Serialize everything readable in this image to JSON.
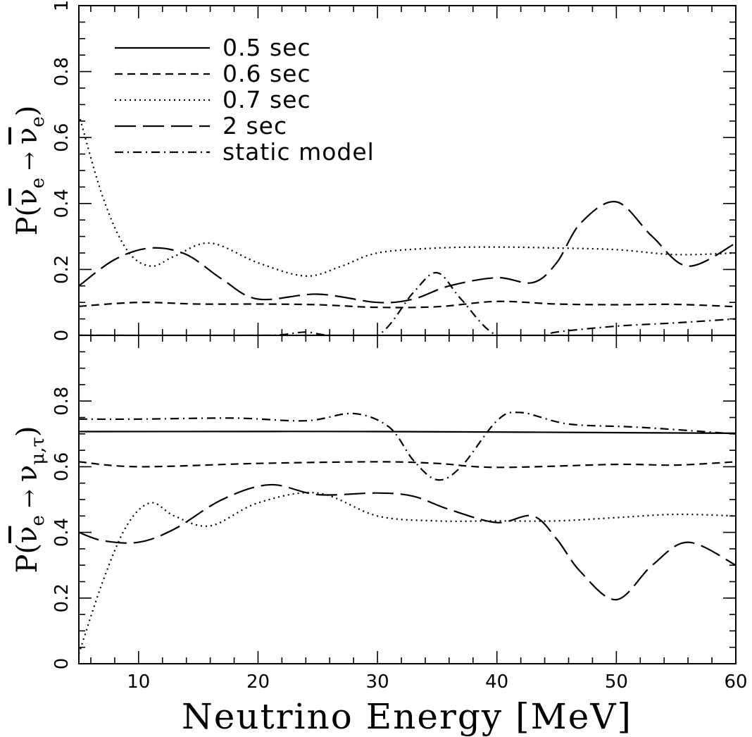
{
  "chart_data": {
    "type": "line",
    "xlabel": "Neutrino Energy [MeV]",
    "xlim": [
      5,
      60
    ],
    "x_ticks": [
      10,
      20,
      30,
      40,
      50,
      60
    ],
    "shared_x_axis": true,
    "colors": {
      "lines": "#000000",
      "background": "#ffffff"
    },
    "legend_location": "upper-left of top panel",
    "legend": [
      {
        "name": "0.5 sec",
        "dash": "solid"
      },
      {
        "name": "0.6 sec",
        "dash": "short-dash"
      },
      {
        "name": "0.7 sec",
        "dash": "dotted"
      },
      {
        "name": "2 sec",
        "dash": "long-dash"
      },
      {
        "name": "static model",
        "dash": "dash-dot"
      }
    ],
    "panels": [
      {
        "ylabel_parts": {
          "prefix": "P(",
          "from": "ν",
          "from_sub": "e",
          "arrow": "→",
          "to": "ν",
          "to_sub": "e",
          "suffix": ")"
        },
        "ylim": [
          0,
          1
        ],
        "y_ticks": [
          0,
          0.2,
          0.4,
          0.6,
          0.8,
          1
        ],
        "y_tick_labels": [
          "0",
          "0.2",
          "0.4",
          "0.6",
          "0.8",
          "1"
        ],
        "series": [
          {
            "name": "0.5 sec",
            "x": [
              5,
              60
            ],
            "y": [
              0.0,
              0.0
            ]
          },
          {
            "name": "0.6 sec",
            "x": [
              5,
              10,
              15,
              20,
              25,
              30,
              35,
              40,
              45,
              50,
              55,
              60
            ],
            "y": [
              0.088,
              0.1,
              0.095,
              0.095,
              0.093,
              0.085,
              0.087,
              0.103,
              0.095,
              0.093,
              0.094,
              0.087
            ]
          },
          {
            "name": "0.7 sec",
            "x": [
              5,
              7,
              9,
              11,
              13,
              16,
              20,
              24,
              27,
              30,
              35,
              40,
              45,
              50,
              55,
              60
            ],
            "y": [
              0.67,
              0.42,
              0.26,
              0.21,
              0.24,
              0.28,
              0.22,
              0.18,
              0.21,
              0.25,
              0.265,
              0.268,
              0.265,
              0.26,
              0.245,
              0.25
            ]
          },
          {
            "name": "2 sec",
            "x": [
              5,
              8,
              11,
              14,
              17,
              20,
              25,
              30,
              33,
              36,
              40,
              43,
              45,
              47,
              50,
              53,
              56,
              60
            ],
            "y": [
              0.15,
              0.23,
              0.265,
              0.245,
              0.17,
              0.11,
              0.125,
              0.1,
              0.11,
              0.15,
              0.175,
              0.16,
              0.22,
              0.34,
              0.405,
              0.3,
              0.21,
              0.28
            ]
          },
          {
            "name": "static model",
            "x": [
              5,
              20,
              22,
              24,
              26,
              30,
              33,
              35,
              37,
              40,
              44,
              45,
              50,
              55,
              60
            ],
            "y": [
              0.0,
              0.0,
              0.002,
              0.01,
              0.0,
              0.0,
              0.13,
              0.19,
              0.11,
              0.0,
              0.0,
              0.01,
              0.028,
              0.038,
              0.05
            ]
          }
        ]
      },
      {
        "ylabel_parts": {
          "prefix": "P(",
          "from": "ν",
          "from_sub": "e",
          "arrow": "→",
          "to": "ν",
          "to_sub": "μ,τ",
          "suffix": ")"
        },
        "ylim": [
          0,
          1
        ],
        "y_ticks": [
          0,
          0.2,
          0.4,
          0.6,
          0.8,
          1
        ],
        "y_tick_labels": [
          "0",
          "0.2",
          "0.4",
          "0.6",
          "0.8",
          ""
        ],
        "series": [
          {
            "name": "0.5 sec",
            "x": [
              5,
              30,
              60
            ],
            "y": [
              0.707,
              0.707,
              0.702
            ]
          },
          {
            "name": "0.6 sec",
            "x": [
              5,
              10,
              20,
              30,
              35,
              40,
              50,
              55,
              60
            ],
            "y": [
              0.615,
              0.6,
              0.61,
              0.615,
              0.61,
              0.598,
              0.607,
              0.605,
              0.615
            ]
          },
          {
            "name": "0.7 sec",
            "x": [
              5,
              7,
              9,
              11,
              13,
              16,
              20,
              25,
              30,
              35,
              40,
              45,
              50,
              55,
              60
            ],
            "y": [
              0.03,
              0.25,
              0.42,
              0.49,
              0.45,
              0.42,
              0.49,
              0.52,
              0.45,
              0.435,
              0.435,
              0.435,
              0.445,
              0.455,
              0.45
            ]
          },
          {
            "name": "2 sec",
            "x": [
              5,
              7,
              10,
              13,
              17,
              21,
              25,
              30,
              33,
              36,
              40,
              43,
              45,
              47,
              50,
              53,
              56,
              60
            ],
            "y": [
              0.4,
              0.375,
              0.37,
              0.41,
              0.5,
              0.545,
              0.515,
              0.52,
              0.51,
              0.47,
              0.43,
              0.45,
              0.38,
              0.28,
              0.195,
              0.3,
              0.37,
              0.3
            ]
          },
          {
            "name": "static model",
            "x": [
              5,
              10,
              18,
              24,
              28,
              31,
              33,
              35,
              37,
              40,
              42,
              46,
              52,
              60
            ],
            "y": [
              0.745,
              0.745,
              0.748,
              0.74,
              0.762,
              0.72,
              0.62,
              0.56,
              0.6,
              0.74,
              0.765,
              0.73,
              0.72,
              0.7
            ]
          }
        ]
      }
    ]
  }
}
